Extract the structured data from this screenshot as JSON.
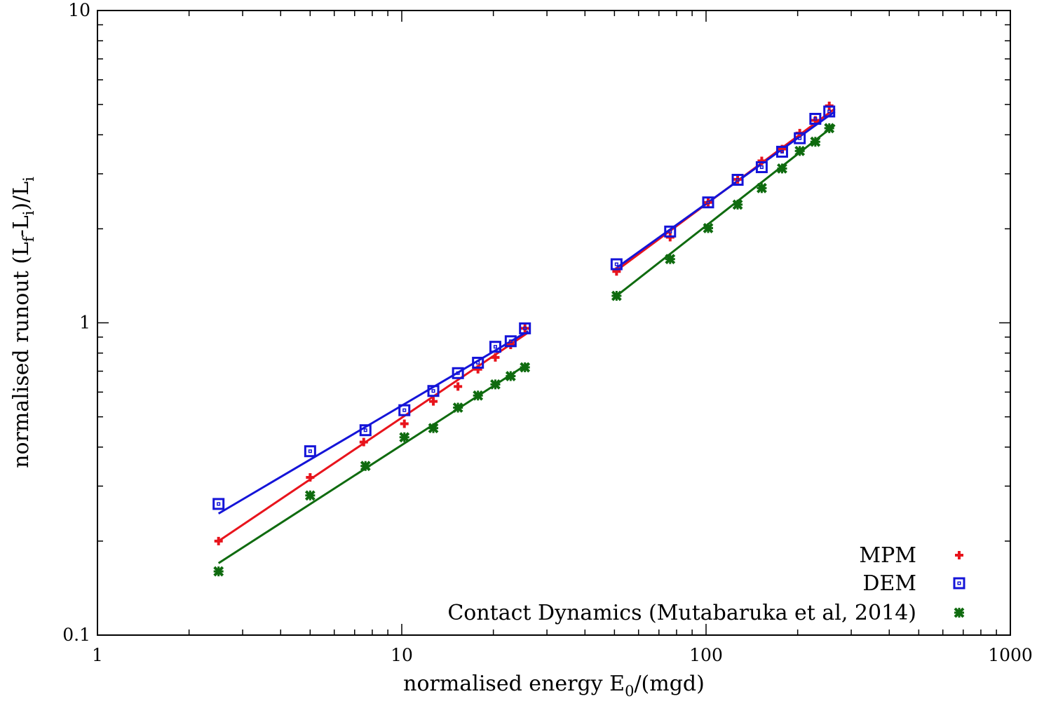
{
  "chart_data": {
    "type": "scatter",
    "xscale": "log",
    "yscale": "log",
    "xlim": [
      1,
      1000
    ],
    "ylim": [
      0.1,
      10
    ],
    "xticks": [
      {
        "value": 1,
        "label": "1"
      },
      {
        "value": 10,
        "label": "10"
      },
      {
        "value": 100,
        "label": "100"
      },
      {
        "value": 1000,
        "label": "1000"
      }
    ],
    "yticks": [
      {
        "value": 0.1,
        "label": "0.1"
      },
      {
        "value": 1,
        "label": "1"
      },
      {
        "value": 10,
        "label": "10"
      }
    ],
    "xlabel": {
      "main": "normalised energy E",
      "sub": "0",
      "rest": "/(mgd)"
    },
    "ylabel": {
      "p1": "normalised runout (L",
      "s1": "f",
      "p2": "-L",
      "s2": "i",
      "p3": ")/L",
      "s3": "i"
    },
    "grid": false,
    "legend_position": "bottom-right",
    "series": [
      {
        "name": "MPM",
        "marker": "plus",
        "color": "#e8141c",
        "points": [
          [
            2.5,
            0.2
          ],
          [
            5,
            0.32
          ],
          [
            7.5,
            0.415
          ],
          [
            10.2,
            0.475
          ],
          [
            12.7,
            0.56
          ],
          [
            15.3,
            0.625
          ],
          [
            17.8,
            0.71
          ],
          [
            20.3,
            0.775
          ],
          [
            22.8,
            0.85
          ],
          [
            25.4,
            0.96
          ],
          [
            50.8,
            1.46
          ],
          [
            76.2,
            1.88
          ],
          [
            101.6,
            2.43
          ],
          [
            127,
            2.88
          ],
          [
            152.4,
            3.3
          ],
          [
            177.8,
            3.6
          ],
          [
            203.2,
            4.05
          ],
          [
            228.6,
            4.45
          ],
          [
            254,
            4.95
          ]
        ],
        "fits": [
          {
            "x": [
              2.5,
              26
            ],
            "y": [
              0.2,
              0.93
            ]
          },
          {
            "x": [
              50.8,
              265
            ],
            "y": [
              1.47,
              4.85
            ]
          }
        ]
      },
      {
        "name": "DEM",
        "marker": "square",
        "color": "#1414d8",
        "points": [
          [
            2.5,
            0.263
          ],
          [
            5,
            0.388
          ],
          [
            7.6,
            0.453
          ],
          [
            10.2,
            0.525
          ],
          [
            12.7,
            0.605
          ],
          [
            15.3,
            0.69
          ],
          [
            17.8,
            0.745
          ],
          [
            20.3,
            0.838
          ],
          [
            22.8,
            0.873
          ],
          [
            25.4,
            0.96
          ],
          [
            50.8,
            1.54
          ],
          [
            76.2,
            1.96
          ],
          [
            101.6,
            2.43
          ],
          [
            127,
            2.87
          ],
          [
            152.4,
            3.15
          ],
          [
            177.8,
            3.53
          ],
          [
            203.2,
            3.9
          ],
          [
            228.6,
            4.5
          ],
          [
            254,
            4.75
          ]
        ],
        "fits": [
          {
            "x": [
              2.5,
              26
            ],
            "y": [
              0.245,
              0.94
            ]
          },
          {
            "x": [
              50.8,
              265
            ],
            "y": [
              1.5,
              4.75
            ]
          }
        ]
      },
      {
        "name": "Contact Dynamics (Mutabaruka et al, 2014)",
        "marker": "star",
        "color": "#0f6b0f",
        "points": [
          [
            2.5,
            0.16
          ],
          [
            5,
            0.28
          ],
          [
            7.6,
            0.348
          ],
          [
            10.2,
            0.43
          ],
          [
            12.7,
            0.46
          ],
          [
            15.3,
            0.535
          ],
          [
            17.8,
            0.585
          ],
          [
            20.3,
            0.635
          ],
          [
            22.8,
            0.675
          ],
          [
            25.4,
            0.72
          ],
          [
            50.8,
            1.22
          ],
          [
            76.2,
            1.6
          ],
          [
            101.6,
            2.01
          ],
          [
            127,
            2.39
          ],
          [
            152.4,
            2.7
          ],
          [
            177.8,
            3.12
          ],
          [
            203.2,
            3.55
          ],
          [
            228.6,
            3.8
          ],
          [
            254,
            4.2
          ]
        ],
        "fits": [
          {
            "x": [
              2.5,
              26
            ],
            "y": [
              0.17,
              0.74
            ]
          },
          {
            "x": [
              50.8,
              265
            ],
            "y": [
              1.22,
              4.3
            ]
          }
        ]
      }
    ]
  }
}
